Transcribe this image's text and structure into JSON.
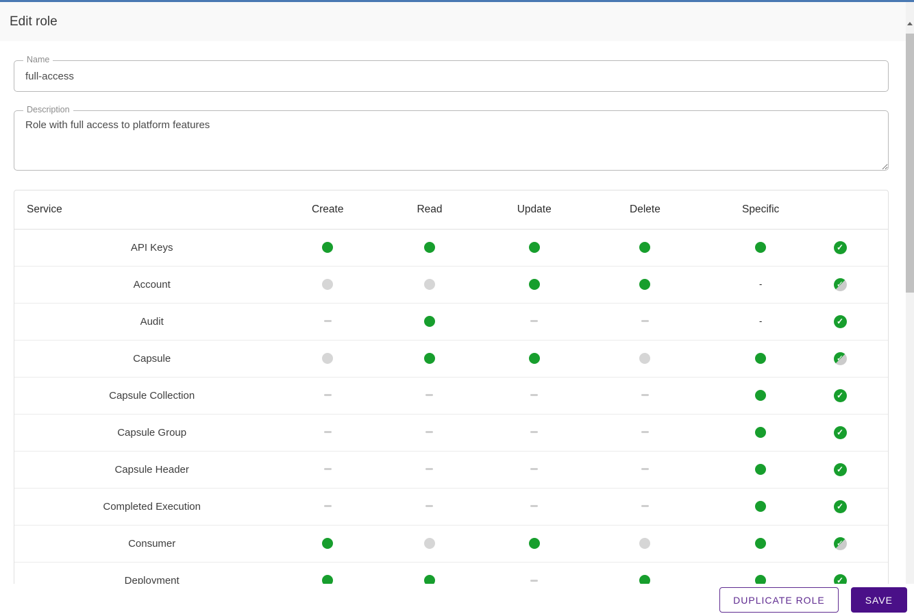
{
  "header": {
    "title": "Edit role"
  },
  "form": {
    "name_field": {
      "label": "Name",
      "value": "full-access"
    },
    "description_field": {
      "label": "Description",
      "value": "Role with full access to platform features"
    }
  },
  "table": {
    "columns": [
      "Service",
      "Create",
      "Read",
      "Update",
      "Delete",
      "Specific"
    ],
    "hyphen_char": "-",
    "rows": [
      {
        "service": "API Keys",
        "create": "on",
        "read": "on",
        "update": "on",
        "delete": "on",
        "specific": "on",
        "overall": "full"
      },
      {
        "service": "Account",
        "create": "off",
        "read": "off",
        "update": "on",
        "delete": "on",
        "specific": "hyphen",
        "overall": "partial"
      },
      {
        "service": "Audit",
        "create": "dash",
        "read": "on",
        "update": "dash",
        "delete": "dash",
        "specific": "hyphen",
        "overall": "full"
      },
      {
        "service": "Capsule",
        "create": "off",
        "read": "on",
        "update": "on",
        "delete": "off",
        "specific": "on",
        "overall": "partial"
      },
      {
        "service": "Capsule Collection",
        "create": "dash",
        "read": "dash",
        "update": "dash",
        "delete": "dash",
        "specific": "on",
        "overall": "full"
      },
      {
        "service": "Capsule Group",
        "create": "dash",
        "read": "dash",
        "update": "dash",
        "delete": "dash",
        "specific": "on",
        "overall": "full"
      },
      {
        "service": "Capsule Header",
        "create": "dash",
        "read": "dash",
        "update": "dash",
        "delete": "dash",
        "specific": "on",
        "overall": "full"
      },
      {
        "service": "Completed Execution",
        "create": "dash",
        "read": "dash",
        "update": "dash",
        "delete": "dash",
        "specific": "on",
        "overall": "full"
      },
      {
        "service": "Consumer",
        "create": "on",
        "read": "off",
        "update": "on",
        "delete": "off",
        "specific": "on",
        "overall": "partial"
      },
      {
        "service": "Deployment",
        "create": "on",
        "read": "on",
        "update": "dash",
        "delete": "on",
        "specific": "on",
        "overall": "full"
      }
    ]
  },
  "footer": {
    "duplicate_label": "DUPLICATE ROLE",
    "save_label": "SAVE"
  },
  "colors": {
    "accent_green": "#179E2D",
    "disabled_gray_dot": "#D6D6D6",
    "unavailable_dash": "#CFCFCF",
    "partial_gray": "#CBCBCB",
    "save_button_purple": "#4A1088",
    "outline_button_purple": "#5F2B90",
    "top_strip_blue": "#4A79B3",
    "header_bar_bg": "#F9F9F9"
  },
  "icons": {
    "permission-on-dot": "filled green circle",
    "permission-off-dot": "filled gray circle",
    "permission-none-dash": "short gray dash",
    "specific-none-hyphen": "-",
    "row-full-check-icon": "white check in green circle",
    "row-partial-check-icon": "white check in half green / half gray circle",
    "scrollbar-up-arrow-icon": "up triangle"
  }
}
